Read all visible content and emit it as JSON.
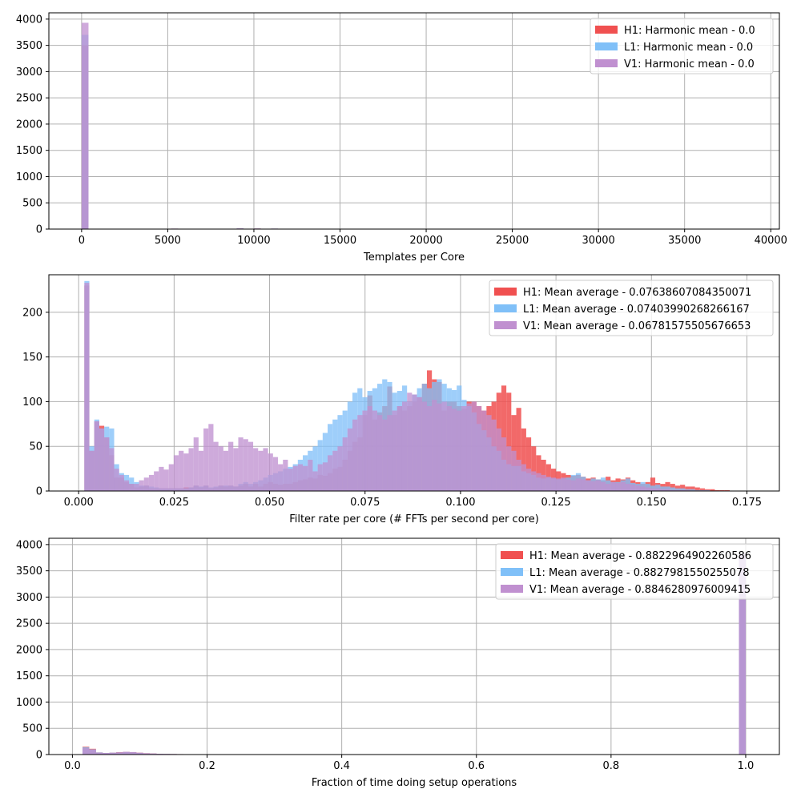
{
  "colors": {
    "H1": "#f05050",
    "L1": "#80c0f8",
    "V1": "#c090d0"
  },
  "chart_data": [
    {
      "type": "bar",
      "subtype": "histogram",
      "xlabel": "Templates per Core",
      "ylabel": "",
      "xlim": [
        -1900,
        40500
      ],
      "ylim": [
        0,
        4120
      ],
      "xticks": [
        0,
        5000,
        10000,
        15000,
        20000,
        25000,
        30000,
        35000,
        40000
      ],
      "xtick_labels": [
        "0",
        "5000",
        "10000",
        "15000",
        "20000",
        "25000",
        "30000",
        "35000",
        "40000"
      ],
      "yticks": [
        0,
        500,
        1000,
        1500,
        2000,
        2500,
        3000,
        3500,
        4000
      ],
      "ytick_labels": [
        "0",
        "500",
        "1000",
        "1500",
        "2000",
        "2500",
        "3000",
        "3500",
        "4000"
      ],
      "grid": true,
      "legend_position": "top-right",
      "bin_width": 400,
      "series": [
        {
          "name": "H1: Harmonic mean  - 0.0",
          "color": "#f05050",
          "bins": [
            [
              0,
              3500
            ],
            [
              3200,
              5
            ],
            [
              5200,
              8
            ],
            [
              9000,
              10
            ],
            [
              10000,
              10
            ],
            [
              11000,
              8
            ],
            [
              13000,
              6
            ]
          ]
        },
        {
          "name": "L1: Harmonic mean  - 0.0",
          "color": "#80c0f8",
          "bins": [
            [
              0,
              3700
            ],
            [
              3200,
              5
            ],
            [
              5200,
              8
            ],
            [
              9000,
              12
            ],
            [
              10000,
              10
            ],
            [
              11000,
              9
            ],
            [
              13000,
              6
            ]
          ]
        },
        {
          "name": "V1: Harmonic mean  - 0.0",
          "color": "#c090d0",
          "bins": [
            [
              0,
              3930
            ],
            [
              3200,
              6
            ],
            [
              5200,
              10
            ],
            [
              9000,
              14
            ],
            [
              10000,
              12
            ],
            [
              11000,
              10
            ],
            [
              13000,
              7
            ],
            [
              14000,
              5
            ]
          ]
        }
      ]
    },
    {
      "type": "bar",
      "subtype": "histogram",
      "xlabel": "Filter rate per core (# FFTs per second per core)",
      "ylabel": "",
      "xlim": [
        -0.0078,
        0.1835
      ],
      "ylim": [
        0,
        242
      ],
      "xticks": [
        0.0,
        0.025,
        0.05,
        0.075,
        0.1,
        0.125,
        0.15,
        0.175
      ],
      "xtick_labels": [
        "0.000",
        "0.025",
        "0.050",
        "0.075",
        "0.100",
        "0.125",
        "0.150",
        "0.175"
      ],
      "yticks": [
        0,
        50,
        100,
        150,
        200
      ],
      "ytick_labels": [
        "0",
        "50",
        "100",
        "150",
        "200"
      ],
      "grid": true,
      "legend_position": "top-right",
      "bin_start": 0.0015,
      "bin_width": 0.0013,
      "series": [
        {
          "name": "H1: Mean average - 0.07638607084350071",
          "color": "#f05050",
          "values": [
            230,
            45,
            78,
            73,
            60,
            40,
            15,
            15,
            10,
            8,
            4,
            5,
            6,
            3,
            3,
            3,
            3,
            3,
            3,
            3,
            4,
            4,
            6,
            4,
            6,
            3,
            4,
            6,
            5,
            6,
            5,
            6,
            8,
            5,
            8,
            5,
            8,
            10,
            8,
            7,
            8,
            8,
            10,
            12,
            13,
            15,
            14,
            18,
            17,
            20,
            25,
            27,
            35,
            45,
            55,
            60,
            85,
            107,
            80,
            88,
            95,
            117,
            85,
            95,
            90,
            95,
            100,
            105,
            120,
            135,
            125,
            122,
            90,
            100,
            100,
            95,
            92,
            100,
            100,
            95,
            90,
            95,
            100,
            110,
            118,
            110,
            85,
            93,
            70,
            60,
            50,
            40,
            35,
            30,
            25,
            22,
            20,
            18,
            17,
            18,
            16,
            14,
            15,
            13,
            12,
            16,
            12,
            14,
            13,
            15,
            12,
            10,
            8,
            10,
            15,
            9,
            8,
            10,
            8,
            6,
            7,
            5,
            5,
            4,
            3,
            2,
            2,
            1,
            1,
            1,
            0,
            0,
            0,
            0,
            0,
            0,
            0,
            0,
            0,
            0,
            0,
            0,
            0,
            0,
            0,
            0,
            0,
            0,
            0,
            0,
            0,
            0,
            0,
            0,
            0,
            0,
            0,
            0,
            0,
            0,
            0,
            0,
            0,
            0,
            0,
            0,
            0,
            0,
            0,
            0,
            0,
            0,
            0,
            0,
            0,
            0,
            0,
            0,
            0,
            0
          ]
        },
        {
          "name": "L1: Mean average - 0.07403990268266167",
          "color": "#80c0f8",
          "values": [
            235,
            50,
            80,
            70,
            72,
            70,
            30,
            20,
            18,
            15,
            10,
            6,
            6,
            5,
            4,
            3,
            3,
            3,
            3,
            3,
            3,
            4,
            6,
            5,
            6,
            4,
            5,
            6,
            6,
            6,
            5,
            8,
            10,
            8,
            10,
            12,
            15,
            18,
            20,
            22,
            25,
            27,
            30,
            35,
            40,
            45,
            50,
            57,
            65,
            75,
            80,
            85,
            90,
            100,
            110,
            115,
            105,
            112,
            115,
            120,
            125,
            122,
            110,
            112,
            118,
            100,
            108,
            115,
            120,
            115,
            122,
            125,
            120,
            115,
            113,
            118,
            102,
            95,
            88,
            75,
            68,
            60,
            50,
            45,
            35,
            30,
            28,
            28,
            22,
            20,
            18,
            15,
            14,
            15,
            14,
            13,
            14,
            15,
            18,
            20,
            16,
            12,
            14,
            13,
            15,
            12,
            10,
            10,
            12,
            14,
            9,
            8,
            10,
            8,
            6,
            7,
            5,
            5,
            4,
            3,
            3,
            2,
            2,
            1,
            1,
            1,
            0,
            0,
            0,
            0,
            0,
            0,
            0,
            0,
            0,
            0,
            0,
            0,
            0,
            0,
            0,
            0,
            0,
            0,
            0,
            0,
            0,
            0,
            0,
            0,
            0,
            0,
            0,
            0,
            0,
            0,
            0,
            0,
            0,
            0,
            0,
            0,
            0,
            0,
            0,
            0,
            0,
            0,
            0,
            0,
            0,
            0,
            0,
            0,
            0,
            0,
            0,
            0,
            0,
            0
          ]
        },
        {
          "name": "V1: Mean average - 0.06781575505676653",
          "color": "#c090d0",
          "values": [
            233,
            45,
            78,
            70,
            60,
            48,
            25,
            18,
            12,
            8,
            8,
            12,
            15,
            18,
            22,
            27,
            24,
            30,
            40,
            45,
            42,
            48,
            60,
            45,
            70,
            75,
            55,
            50,
            45,
            55,
            48,
            60,
            58,
            55,
            48,
            45,
            48,
            42,
            38,
            30,
            35,
            25,
            28,
            30,
            28,
            35,
            22,
            30,
            32,
            40,
            45,
            50,
            60,
            70,
            80,
            85,
            90,
            95,
            90,
            85,
            80,
            85,
            90,
            95,
            100,
            110,
            108,
            105,
            100,
            95,
            102,
            98,
            100,
            95,
            92,
            90,
            95,
            98,
            100,
            95,
            90,
            85,
            80,
            70,
            60,
            50,
            45,
            35,
            30,
            25,
            22,
            20,
            18,
            16,
            15,
            14,
            15,
            13,
            12,
            14,
            13,
            12,
            11,
            12,
            10,
            8,
            10,
            9,
            10,
            8,
            7,
            6,
            5,
            4,
            3,
            3,
            2,
            2,
            1,
            1,
            1,
            1,
            0,
            0,
            0,
            0,
            0,
            0,
            0,
            0,
            0,
            0,
            0,
            0,
            0,
            0,
            0,
            0,
            0,
            0,
            0,
            0,
            0,
            0,
            0,
            0,
            0,
            0,
            0,
            0,
            0,
            0,
            0,
            0,
            0,
            0,
            0,
            0,
            0,
            0,
            0,
            0,
            0,
            0,
            0,
            0,
            0,
            0,
            0,
            0,
            0,
            0,
            0,
            0,
            0,
            0,
            0,
            0,
            0,
            0,
            0,
            0
          ]
        }
      ]
    },
    {
      "type": "bar",
      "subtype": "histogram",
      "xlabel": "Fraction of time doing setup operations",
      "ylabel": "",
      "xlim": [
        -0.035,
        1.05
      ],
      "ylim": [
        0,
        4120
      ],
      "xticks": [
        0.0,
        0.2,
        0.4,
        0.6,
        0.8,
        1.0
      ],
      "xtick_labels": [
        "0.0",
        "0.2",
        "0.4",
        "0.6",
        "0.8",
        "1.0"
      ],
      "yticks": [
        0,
        500,
        1000,
        1500,
        2000,
        2500,
        3000,
        3500,
        4000
      ],
      "ytick_labels": [
        "0",
        "500",
        "1000",
        "1500",
        "2000",
        "2500",
        "3000",
        "3500",
        "4000"
      ],
      "grid": true,
      "legend_position": "top-right",
      "bin_width": 0.01,
      "series": [
        {
          "name": "H1: Mean average - 0.8822964902260586",
          "color": "#f05050",
          "bins": [
            [
              0.015,
              150
            ],
            [
              0.025,
              110
            ],
            [
              0.035,
              40
            ],
            [
              0.045,
              30
            ],
            [
              0.055,
              35
            ],
            [
              0.065,
              45
            ],
            [
              0.075,
              50
            ],
            [
              0.085,
              45
            ],
            [
              0.095,
              35
            ],
            [
              0.105,
              25
            ],
            [
              0.115,
              20
            ],
            [
              0.125,
              15
            ],
            [
              0.135,
              12
            ],
            [
              0.145,
              10
            ],
            [
              0.155,
              8
            ],
            [
              0.165,
              6
            ],
            [
              0.175,
              5
            ],
            [
              0.21,
              5
            ],
            [
              0.99,
              3800
            ]
          ]
        },
        {
          "name": "L1: Mean average - 0.8827981550255078",
          "color": "#80c0f8",
          "bins": [
            [
              0.015,
              140
            ],
            [
              0.025,
              100
            ],
            [
              0.035,
              40
            ],
            [
              0.045,
              30
            ],
            [
              0.055,
              35
            ],
            [
              0.065,
              40
            ],
            [
              0.075,
              48
            ],
            [
              0.085,
              42
            ],
            [
              0.095,
              32
            ],
            [
              0.105,
              22
            ],
            [
              0.115,
              18
            ],
            [
              0.125,
              14
            ],
            [
              0.135,
              12
            ],
            [
              0.145,
              10
            ],
            [
              0.155,
              8
            ],
            [
              0.165,
              6
            ],
            [
              0.175,
              5
            ],
            [
              0.21,
              5
            ],
            [
              0.99,
              3820
            ]
          ]
        },
        {
          "name": "V1: Mean average - 0.8846280976009415",
          "color": "#c090d0",
          "bins": [
            [
              0.015,
              120
            ],
            [
              0.025,
              95
            ],
            [
              0.035,
              35
            ],
            [
              0.045,
              30
            ],
            [
              0.055,
              35
            ],
            [
              0.065,
              42
            ],
            [
              0.075,
              52
            ],
            [
              0.085,
              48
            ],
            [
              0.095,
              35
            ],
            [
              0.105,
              25
            ],
            [
              0.115,
              20
            ],
            [
              0.125,
              15
            ],
            [
              0.135,
              12
            ],
            [
              0.145,
              10
            ],
            [
              0.155,
              8
            ],
            [
              0.165,
              6
            ],
            [
              0.175,
              5
            ],
            [
              0.21,
              4
            ],
            [
              0.99,
              3830
            ]
          ]
        }
      ]
    }
  ]
}
